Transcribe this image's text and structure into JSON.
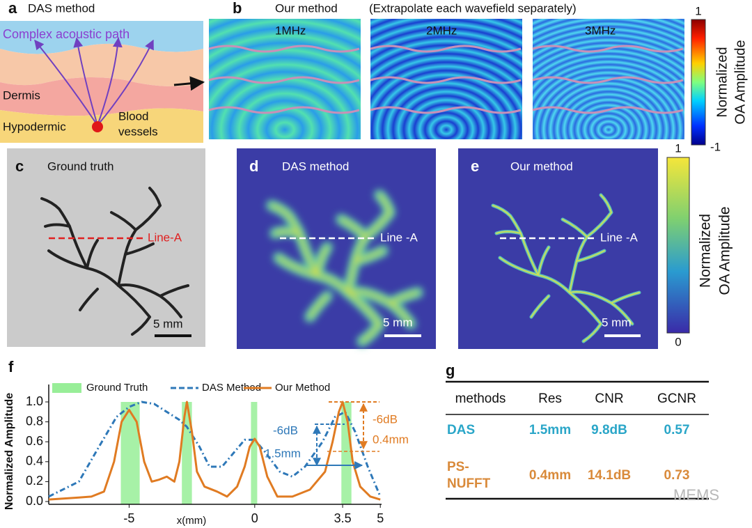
{
  "panels": {
    "a": {
      "label": "a",
      "title": "DAS method",
      "path_label": "Complex acoustic path",
      "layers": [
        "Dermis",
        "Hypodermic"
      ],
      "vessel_label": [
        "Blood",
        "vessels"
      ]
    },
    "b": {
      "label": "b",
      "title": "Our method",
      "subtitle": "(Extrapolate each wavefield separately)",
      "frequencies": [
        "1MHz",
        "2MHz",
        "3MHz"
      ],
      "colorbar": {
        "max": 1,
        "min": -1,
        "title": [
          "Normalized",
          "OA Amplitude"
        ]
      }
    },
    "c": {
      "label": "c",
      "title": "Ground truth",
      "line": "Line-A",
      "scale": "5 mm"
    },
    "d": {
      "label": "d",
      "title": "DAS method",
      "line": "Line -A",
      "scale": "5 mm"
    },
    "e": {
      "label": "e",
      "title": "Our method",
      "line": "Line -A",
      "scale": "5 mm",
      "colorbar": {
        "max": 1,
        "min": 0,
        "title": [
          "Normalized",
          "OA Amplitude"
        ]
      }
    },
    "f": {
      "label": "f"
    },
    "g": {
      "label": "g"
    }
  },
  "chart_data": {
    "type": "line",
    "ylabel": "Normalized Amplitude",
    "xlabel": "x(mm)",
    "xlim": [
      -8.2,
      5.05
    ],
    "xticks": [
      -5,
      0,
      3.5,
      5
    ],
    "ylim": [
      0,
      1
    ],
    "yticks": [
      {
        "value": 0,
        "label": "0.0"
      },
      {
        "value": 0.2,
        "label": "0.2"
      },
      {
        "value": 0.4,
        "label": "0.4"
      },
      {
        "value": 0.6,
        "label": "0.6"
      },
      {
        "value": 0.8,
        "label": "0.8"
      },
      {
        "value": 1,
        "label": "1.0"
      }
    ],
    "ground_truth": {
      "name": "Ground Truth",
      "color": "#98ee98",
      "bands": [
        [
          -5.33,
          -4.58
        ],
        [
          -2.9,
          -2.5
        ],
        [
          -0.15,
          0.1
        ],
        [
          3.45,
          3.85
        ]
      ]
    },
    "series": [
      {
        "name": "DAS Method",
        "color": "#2e78b8",
        "dash": true,
        "x": [
          -8.2,
          -7,
          -6.2,
          -5.5,
          -5,
          -4.5,
          -4,
          -3.5,
          -3,
          -2.7,
          -2.2,
          -1.8,
          -1.3,
          -0.8,
          -0.4,
          0,
          0.4,
          1,
          1.5,
          2,
          2.7,
          3.2,
          3.6,
          4,
          4.5,
          5
        ],
        "values": [
          0.05,
          0.2,
          0.55,
          0.85,
          0.95,
          1,
          0.98,
          0.9,
          0.82,
          0.75,
          0.55,
          0.35,
          0.35,
          0.5,
          0.62,
          0.62,
          0.5,
          0.3,
          0.25,
          0.35,
          0.6,
          0.85,
          0.9,
          0.7,
          0.35,
          0.05
        ]
      },
      {
        "name": "Our Method",
        "color": "#e07b22",
        "dash": false,
        "x": [
          -8.2,
          -7,
          -6.5,
          -6,
          -5.6,
          -5.3,
          -5,
          -4.7,
          -4.4,
          -4.1,
          -3.8,
          -3.5,
          -3.2,
          -3,
          -2.8,
          -2.7,
          -2.5,
          -2.3,
          -2,
          -1.5,
          -1.1,
          -0.7,
          -0.4,
          -0.2,
          0,
          0.2,
          0.5,
          0.9,
          1.5,
          2.2,
          2.8,
          3.1,
          3.35,
          3.5,
          3.7,
          3.9,
          4.2,
          4.6,
          5
        ],
        "values": [
          0.02,
          0.04,
          0.05,
          0.1,
          0.4,
          0.8,
          0.92,
          0.8,
          0.4,
          0.2,
          0.22,
          0.25,
          0.2,
          0.4,
          0.85,
          1,
          0.7,
          0.3,
          0.15,
          0.1,
          0.05,
          0.15,
          0.35,
          0.55,
          0.63,
          0.55,
          0.25,
          0.05,
          0.05,
          0.12,
          0.3,
          0.6,
          0.9,
          1,
          0.8,
          0.4,
          0.15,
          0.05,
          0.02
        ]
      }
    ],
    "annotations": [
      {
        "text": "-6dB",
        "color": "#2e78b8"
      },
      {
        "text": "1.5mm",
        "color": "#2e78b8"
      },
      {
        "text": "-6dB",
        "color": "#e07b22"
      },
      {
        "text": "0.4mm",
        "color": "#e07b22"
      }
    ]
  },
  "table": {
    "header": [
      "methods",
      "Res",
      "CNR",
      "GCNR"
    ],
    "rows": [
      {
        "color": "#2aa6c8",
        "cells": [
          [
            "DAS"
          ],
          [
            "1.5mm"
          ],
          [
            "9.8dB"
          ],
          [
            "0.57"
          ]
        ]
      },
      {
        "color": "#d98a3a",
        "cells": [
          [
            "PS-",
            "NUFFT"
          ],
          [
            "0.4mm"
          ],
          [
            "14.1dB"
          ],
          [
            "0.73"
          ]
        ]
      }
    ]
  },
  "watermark": "MEMS"
}
